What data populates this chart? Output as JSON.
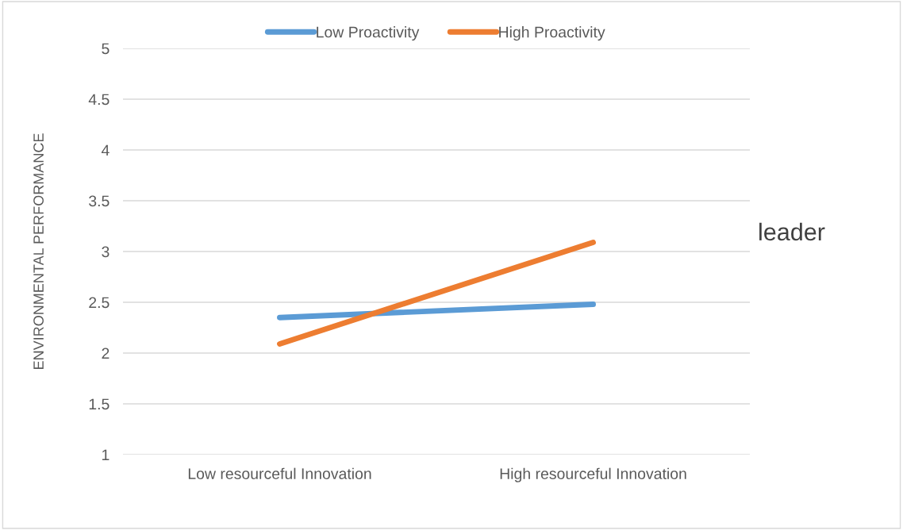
{
  "chart_data": {
    "type": "line",
    "ylabel": "ENVIRONMENTAL PERFORMANCE",
    "categories": [
      "Low resourceful Innovation",
      "High resourceful Innovation"
    ],
    "series": [
      {
        "name": "Low Proactivity",
        "color": "#5b9bd5",
        "values": [
          2.35,
          2.48
        ]
      },
      {
        "name": "High Proactivity",
        "color": "#ed7d31",
        "values": [
          2.09,
          3.09
        ]
      }
    ],
    "ylim": [
      1,
      5
    ],
    "yticks": [
      1,
      1.5,
      2,
      2.5,
      3,
      3.5,
      4,
      4.5,
      5
    ],
    "grid": "y",
    "legend": "top",
    "marker": "none",
    "line_style": "solid",
    "annotations": [
      "leader"
    ]
  }
}
